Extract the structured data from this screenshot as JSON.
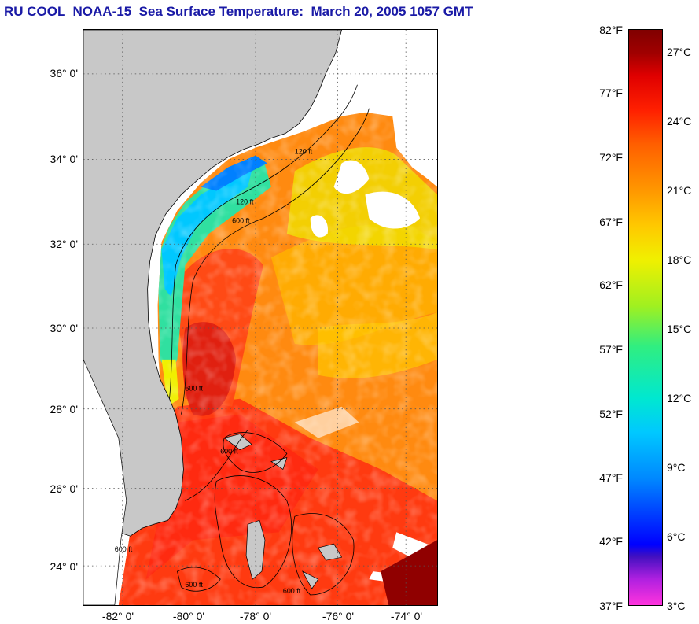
{
  "title": "RU COOL  NOAA-15  Sea Surface Temperature:  March 20, 2005 1057 GMT",
  "map": {
    "lat_ticks": [
      "36° 0'",
      "34° 0'",
      "32° 0'",
      "30° 0'",
      "28° 0'",
      "26° 0'",
      "24° 0'"
    ],
    "lon_ticks": [
      "-82° 0'",
      "-80° 0'",
      "-78° 0'",
      "-76° 0'",
      "-74° 0'"
    ],
    "land_color": "#c8c8c8",
    "contour_labels": [
      "120 ft",
      "600 ft",
      "120 ft",
      "600 ft",
      "600 ft",
      "600 ft",
      "600 ft",
      "600 ft"
    ]
  },
  "colorbar": {
    "fahrenheit": [
      "82°F",
      "77°F",
      "72°F",
      "67°F",
      "62°F",
      "57°F",
      "52°F",
      "47°F",
      "42°F",
      "37°F"
    ],
    "celsius": [
      "27°C",
      "24°C",
      "21°C",
      "18°C",
      "15°C",
      "12°C",
      "9°C",
      "6°C",
      "3°C"
    ]
  }
}
